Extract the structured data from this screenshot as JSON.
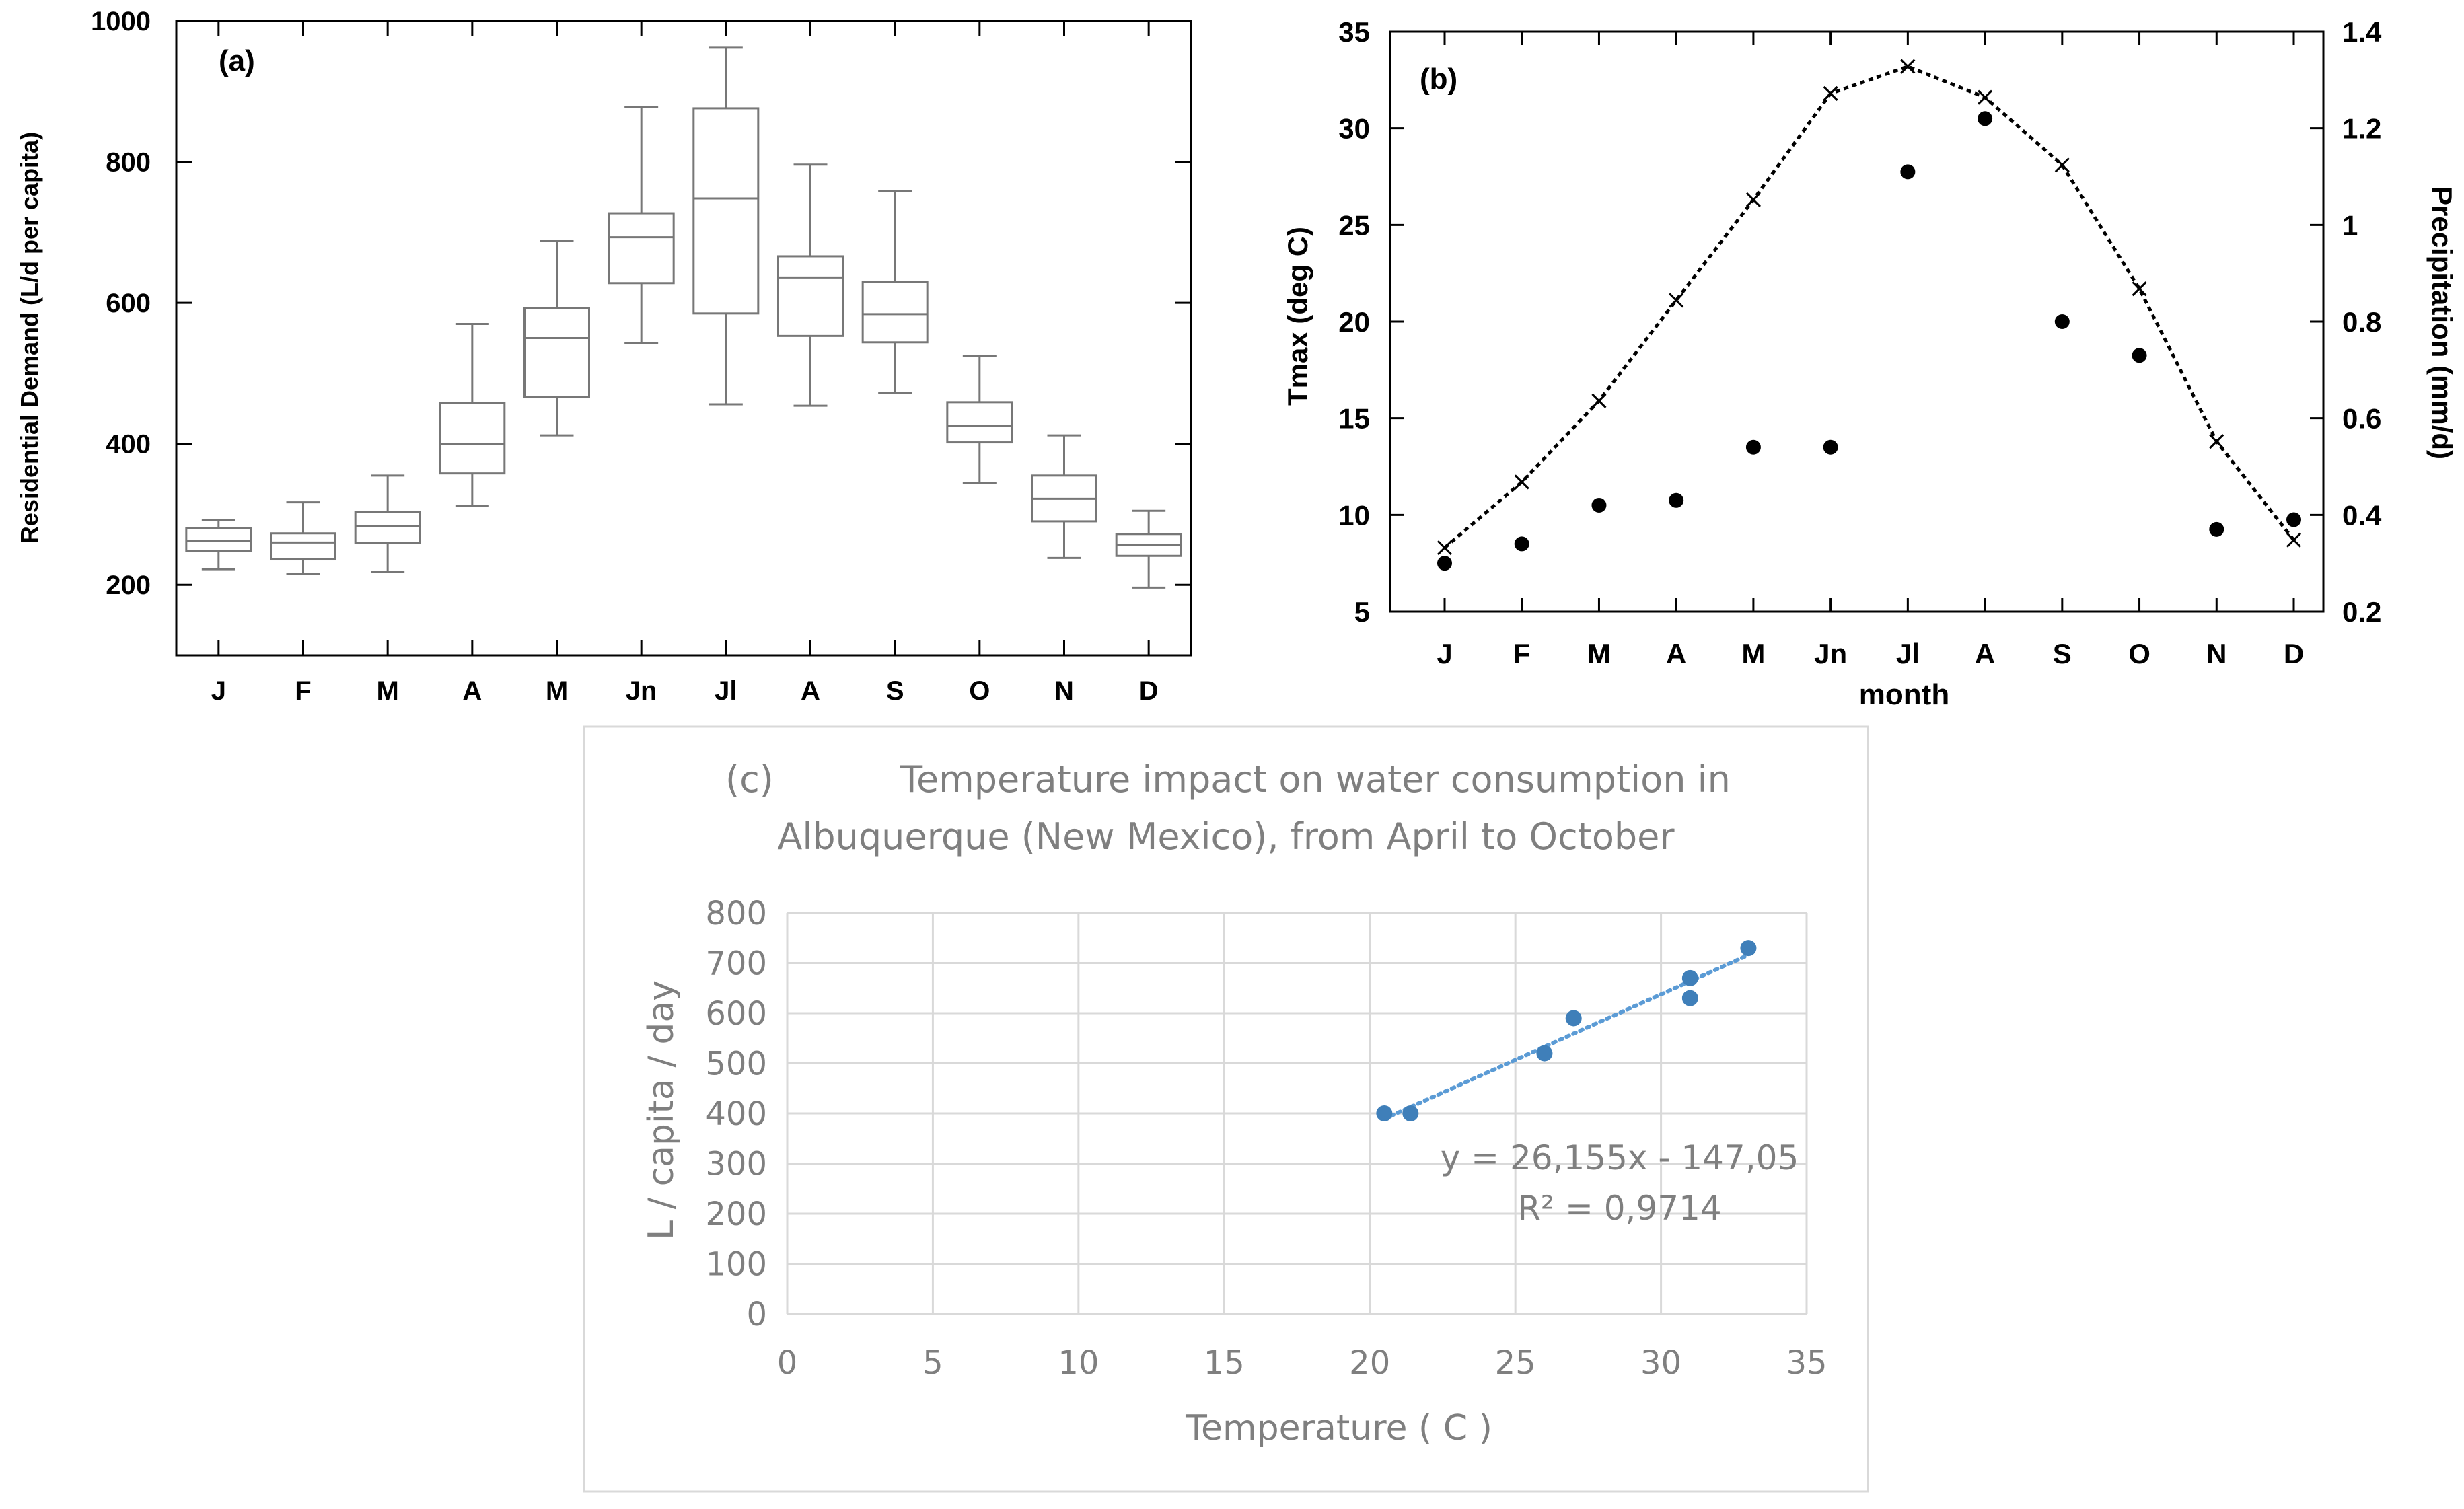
{
  "chart_data": [
    {
      "id": "a",
      "type": "box",
      "panel_label": "(a)",
      "ylabel": "Residential Demand (L/d per capita)",
      "xlabel": "",
      "ylim": [
        100,
        1000
      ],
      "yticks": [
        "200",
        "400",
        "600",
        "800",
        "1000"
      ],
      "ytick_values": [
        200,
        400,
        600,
        800,
        1000
      ],
      "categories": [
        "J",
        "F",
        "M",
        "A",
        "M",
        "Jn",
        "Jl",
        "A",
        "S",
        "O",
        "N",
        "D"
      ],
      "boxes": [
        {
          "min": 222,
          "q1": 248,
          "median": 262,
          "q3": 280,
          "max": 292
        },
        {
          "min": 215,
          "q1": 236,
          "median": 260,
          "q3": 273,
          "max": 317
        },
        {
          "min": 218,
          "q1": 259,
          "median": 283,
          "q3": 303,
          "max": 355
        },
        {
          "min": 312,
          "q1": 358,
          "median": 400,
          "q3": 458,
          "max": 570
        },
        {
          "min": 412,
          "q1": 466,
          "median": 550,
          "q3": 592,
          "max": 688
        },
        {
          "min": 543,
          "q1": 628,
          "median": 693,
          "q3": 727,
          "max": 878
        },
        {
          "min": 456,
          "q1": 585,
          "median": 748,
          "q3": 876,
          "max": 962
        },
        {
          "min": 454,
          "q1": 553,
          "median": 636,
          "q3": 666,
          "max": 796
        },
        {
          "min": 472,
          "q1": 544,
          "median": 584,
          "q3": 630,
          "max": 758
        },
        {
          "min": 344,
          "q1": 402,
          "median": 425,
          "q3": 459,
          "max": 525
        },
        {
          "min": 238,
          "q1": 290,
          "median": 322,
          "q3": 355,
          "max": 412
        },
        {
          "min": 196,
          "q1": 241,
          "median": 257,
          "q3": 272,
          "max": 305
        }
      ]
    },
    {
      "id": "b",
      "type": "line+scatter",
      "panel_label": "(b)",
      "xlabel": "month",
      "ylabel_left": "Tmax (deg C)",
      "ylabel_right": "Precipitation (mm/d)",
      "ylim_left": [
        5,
        35
      ],
      "ylim_right": [
        0.2,
        1.4
      ],
      "yticks_left": [
        "5",
        "10",
        "15",
        "20",
        "25",
        "30",
        "35"
      ],
      "ytick_values_left": [
        5,
        10,
        15,
        20,
        25,
        30,
        35
      ],
      "yticks_right": [
        "0.2",
        "0.4",
        "0.6",
        "0.8",
        "1",
        "1.2",
        "1.4"
      ],
      "ytick_values_right": [
        0.2,
        0.4,
        0.6,
        0.8,
        1.0,
        1.2,
        1.4
      ],
      "categories": [
        "J",
        "F",
        "M",
        "A",
        "M",
        "Jn",
        "Jl",
        "A",
        "S",
        "O",
        "N",
        "D"
      ],
      "series": [
        {
          "name": "Tmax",
          "axis": "left",
          "style": "dotted line with x markers",
          "values": [
            8.3,
            11.7,
            15.9,
            21.1,
            26.3,
            31.8,
            33.2,
            31.6,
            28.1,
            21.7,
            13.8,
            8.7
          ]
        },
        {
          "name": "Precipitation",
          "axis": "right",
          "style": "filled circles",
          "values": [
            0.3,
            0.34,
            0.42,
            0.43,
            0.54,
            0.54,
            1.11,
            1.22,
            0.8,
            0.73,
            0.37,
            0.39
          ]
        }
      ]
    },
    {
      "id": "c",
      "type": "scatter",
      "panel_label": "(c)",
      "title_line1": "Temperature impact on water consumption in",
      "title_line2": "Albuquerque (New Mexico), from April to October",
      "xlabel": "Temperature ( C )",
      "ylabel": "L / capita / day",
      "xlim": [
        0,
        35
      ],
      "ylim": [
        0,
        800
      ],
      "xticks": [
        "0",
        "5",
        "10",
        "15",
        "20",
        "25",
        "30",
        "35"
      ],
      "xtick_values": [
        0,
        5,
        10,
        15,
        20,
        25,
        30,
        35
      ],
      "yticks": [
        "0",
        "100",
        "200",
        "300",
        "400",
        "500",
        "600",
        "700",
        "800"
      ],
      "ytick_values": [
        0,
        100,
        200,
        300,
        400,
        500,
        600,
        700,
        800
      ],
      "points": [
        {
          "x": 20.5,
          "y": 400
        },
        {
          "x": 21.4,
          "y": 400
        },
        {
          "x": 26,
          "y": 520
        },
        {
          "x": 27,
          "y": 590
        },
        {
          "x": 31,
          "y": 630
        },
        {
          "x": 31,
          "y": 670
        },
        {
          "x": 33,
          "y": 730
        }
      ],
      "trendline": {
        "slope": 26.155,
        "intercept": -147.05,
        "x_from": 20.5,
        "x_to": 33
      },
      "equation": "y = 26,155x - 147,05",
      "r2_label": "R² = 0,9714",
      "colors": {
        "point": "#3f7fb9",
        "trend": "#5b9bd5",
        "grid": "#d9d9d9",
        "text": "#7f7f7f",
        "frame": "#d9d9d9"
      }
    }
  ]
}
